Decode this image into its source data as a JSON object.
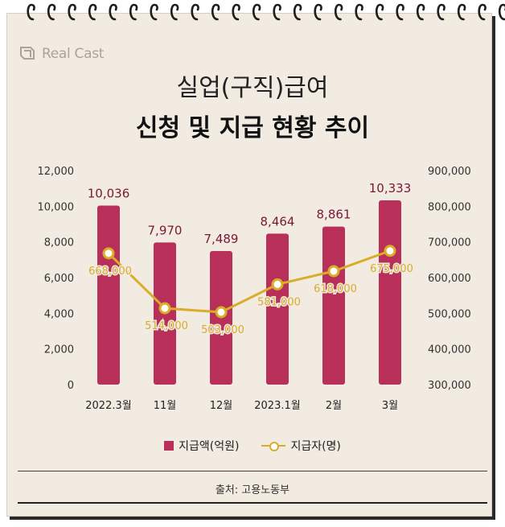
{
  "brand": {
    "name": "Real Cast"
  },
  "title": {
    "line1": "실업(구직)급여",
    "line2": "신청 및 지급 현황 추이"
  },
  "legend": {
    "bar_label": "지급액(억원)",
    "line_label": "지급자(명)"
  },
  "source": "출처: 고용노동부",
  "colors": {
    "bar": "#b8305a",
    "line": "#d9ac2a",
    "bar_label": "#7a1836",
    "line_label": "#d9ac2a"
  },
  "chart_data": {
    "type": "bar+line",
    "categories": [
      "2022.3월",
      "11월",
      "12월",
      "2023.1월",
      "2월",
      "3월"
    ],
    "series": [
      {
        "name": "지급액(억원)",
        "type": "bar",
        "axis": "left",
        "values": [
          10036,
          7970,
          7489,
          8464,
          8861,
          10333
        ],
        "labels": [
          "10,036",
          "7,970",
          "7,489",
          "8,464",
          "8,861",
          "10,333"
        ]
      },
      {
        "name": "지급자(명)",
        "type": "line",
        "axis": "right",
        "values": [
          668000,
          514000,
          503000,
          581000,
          618000,
          675000
        ],
        "labels": [
          "668,000",
          "514,000",
          "503,000",
          "581,000",
          "618,000",
          "675,000"
        ]
      }
    ],
    "y_left": {
      "range": [
        0,
        12000
      ],
      "ticks": [
        "0",
        "2,000",
        "4,000",
        "6,000",
        "8,000",
        "10,000",
        "12,000"
      ]
    },
    "y_right": {
      "range": [
        300000,
        900000
      ],
      "ticks": [
        "300,000",
        "400,000",
        "500,000",
        "600,000",
        "700,000",
        "800,000",
        "900,000"
      ]
    },
    "grid": false,
    "legend_position": "bottom"
  }
}
